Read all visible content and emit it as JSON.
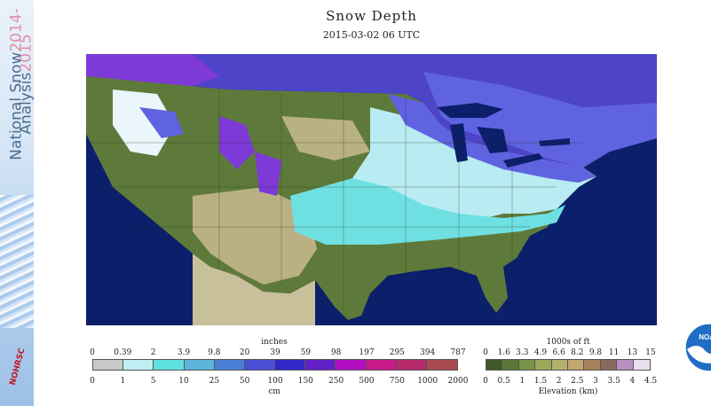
{
  "sidebar": {
    "line1": "National Snow",
    "line1_year": "2014-",
    "line2": "Analysis",
    "line2_year": "2015",
    "logo_text": "NOHRSC"
  },
  "header": {
    "title": "Snow Depth",
    "subtitle": "2015-03-02 06 UTC"
  },
  "map": {
    "logo_text": "NOAA",
    "colors": {
      "ocean": "#0b1f6a",
      "canada": "#4d44c8",
      "bare_green": "#5e7a3a",
      "bare_tan": "#b9b184",
      "snow_cyan": "#6fe0e2",
      "snow_light": "#b9ecf2",
      "snow_white": "#eaf6fa",
      "snow_blue": "#5f63e0",
      "snow_purple": "#7d3ad6"
    }
  },
  "snow_legend": {
    "unit_top": "inches",
    "unit_bottom": "cm",
    "inches_labels": [
      "0",
      "0.39",
      "2",
      "3.9",
      "9.8",
      "20",
      "39",
      "59",
      "98",
      "197",
      "295",
      "394",
      "787"
    ],
    "cm_labels": [
      "0",
      "1",
      "5",
      "10",
      "25",
      "50",
      "100",
      "150",
      "250",
      "500",
      "750",
      "1000",
      "2000"
    ],
    "colors": [
      "#c8c8c8",
      "#bfeff2",
      "#5fe2df",
      "#5bb4dc",
      "#4a7fd6",
      "#4a4fd8",
      "#3326c8",
      "#6120c8",
      "#b20fc2",
      "#c81a8a",
      "#b62a6a",
      "#a84a52"
    ]
  },
  "elev_legend": {
    "unit_top": "1000s of ft",
    "unit_bottom": "Elevation (km)",
    "ft_labels": [
      "0",
      "1.6",
      "3.3",
      "4.9",
      "6.6",
      "8.2",
      "9.8",
      "11",
      "13",
      "15"
    ],
    "km_labels": [
      "0",
      "0.5",
      "1",
      "1.5",
      "2",
      "2.5",
      "3",
      "3.5",
      "4",
      "4.5"
    ],
    "colors": [
      "#3f5a2a",
      "#5b7838",
      "#7a9248",
      "#9aa85a",
      "#b6b070",
      "#c2a670",
      "#a68058",
      "#8a6a5e",
      "#b690c0",
      "#e8e0ee"
    ]
  }
}
